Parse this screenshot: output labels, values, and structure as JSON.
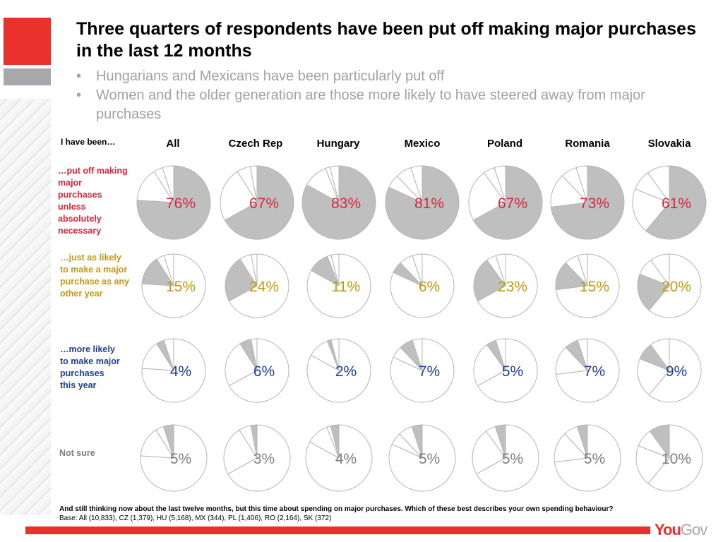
{
  "header": {
    "title": "Three quarters of respondents have been put off making major purchases in the last 12 months",
    "bullets": [
      "Hungarians and Mexicans have been particularly put off",
      "Women and the older generation are those more likely to have steered away from major purchases"
    ]
  },
  "colors": {
    "brand_red": "#e9312c",
    "brand_grey": "#a7a8ab",
    "put_off": "#d8283b",
    "just_as_likely": "#c49a12",
    "more_likely": "#1f3f98",
    "not_sure": "#7f7f7f",
    "highlight_slice": "#bfbfbf"
  },
  "row_header": "I have been…",
  "chart_data": {
    "type": "pie",
    "title": "Three quarters of respondents have been put off making major purchases in the last 12 months",
    "categories": [
      "All",
      "Czech Rep",
      "Hungary",
      "Mexico",
      "Poland",
      "Romania",
      "Slovakia"
    ],
    "series": [
      {
        "name": "…put off making major purchases unless absolutely necessary",
        "color_key": "put_off",
        "values": [
          76,
          67,
          83,
          81,
          67,
          73,
          61
        ]
      },
      {
        "name": "…just as likely to make a major purchase as any other year",
        "color_key": "just_as_likely",
        "values": [
          15,
          24,
          11,
          6,
          23,
          15,
          20
        ]
      },
      {
        "name": "…more likely to make major purchases this year",
        "color_key": "more_likely",
        "values": [
          4,
          6,
          2,
          7,
          5,
          7,
          9
        ]
      },
      {
        "name": "Not sure",
        "color_key": "not_sure",
        "values": [
          5,
          3,
          4,
          5,
          5,
          5,
          10
        ]
      }
    ],
    "unit": "%"
  },
  "footer": {
    "question": "And still thinking now about the last twelve months, but this time about spending on major purchases. Which of these best describes your own spending behaviour?",
    "base": "Base: All (10,833), CZ (1,379), HU (5,168), MX (344), PL (1,406), RO (2,164), SK (372)",
    "logo_you": "You",
    "logo_gov": "Gov"
  }
}
